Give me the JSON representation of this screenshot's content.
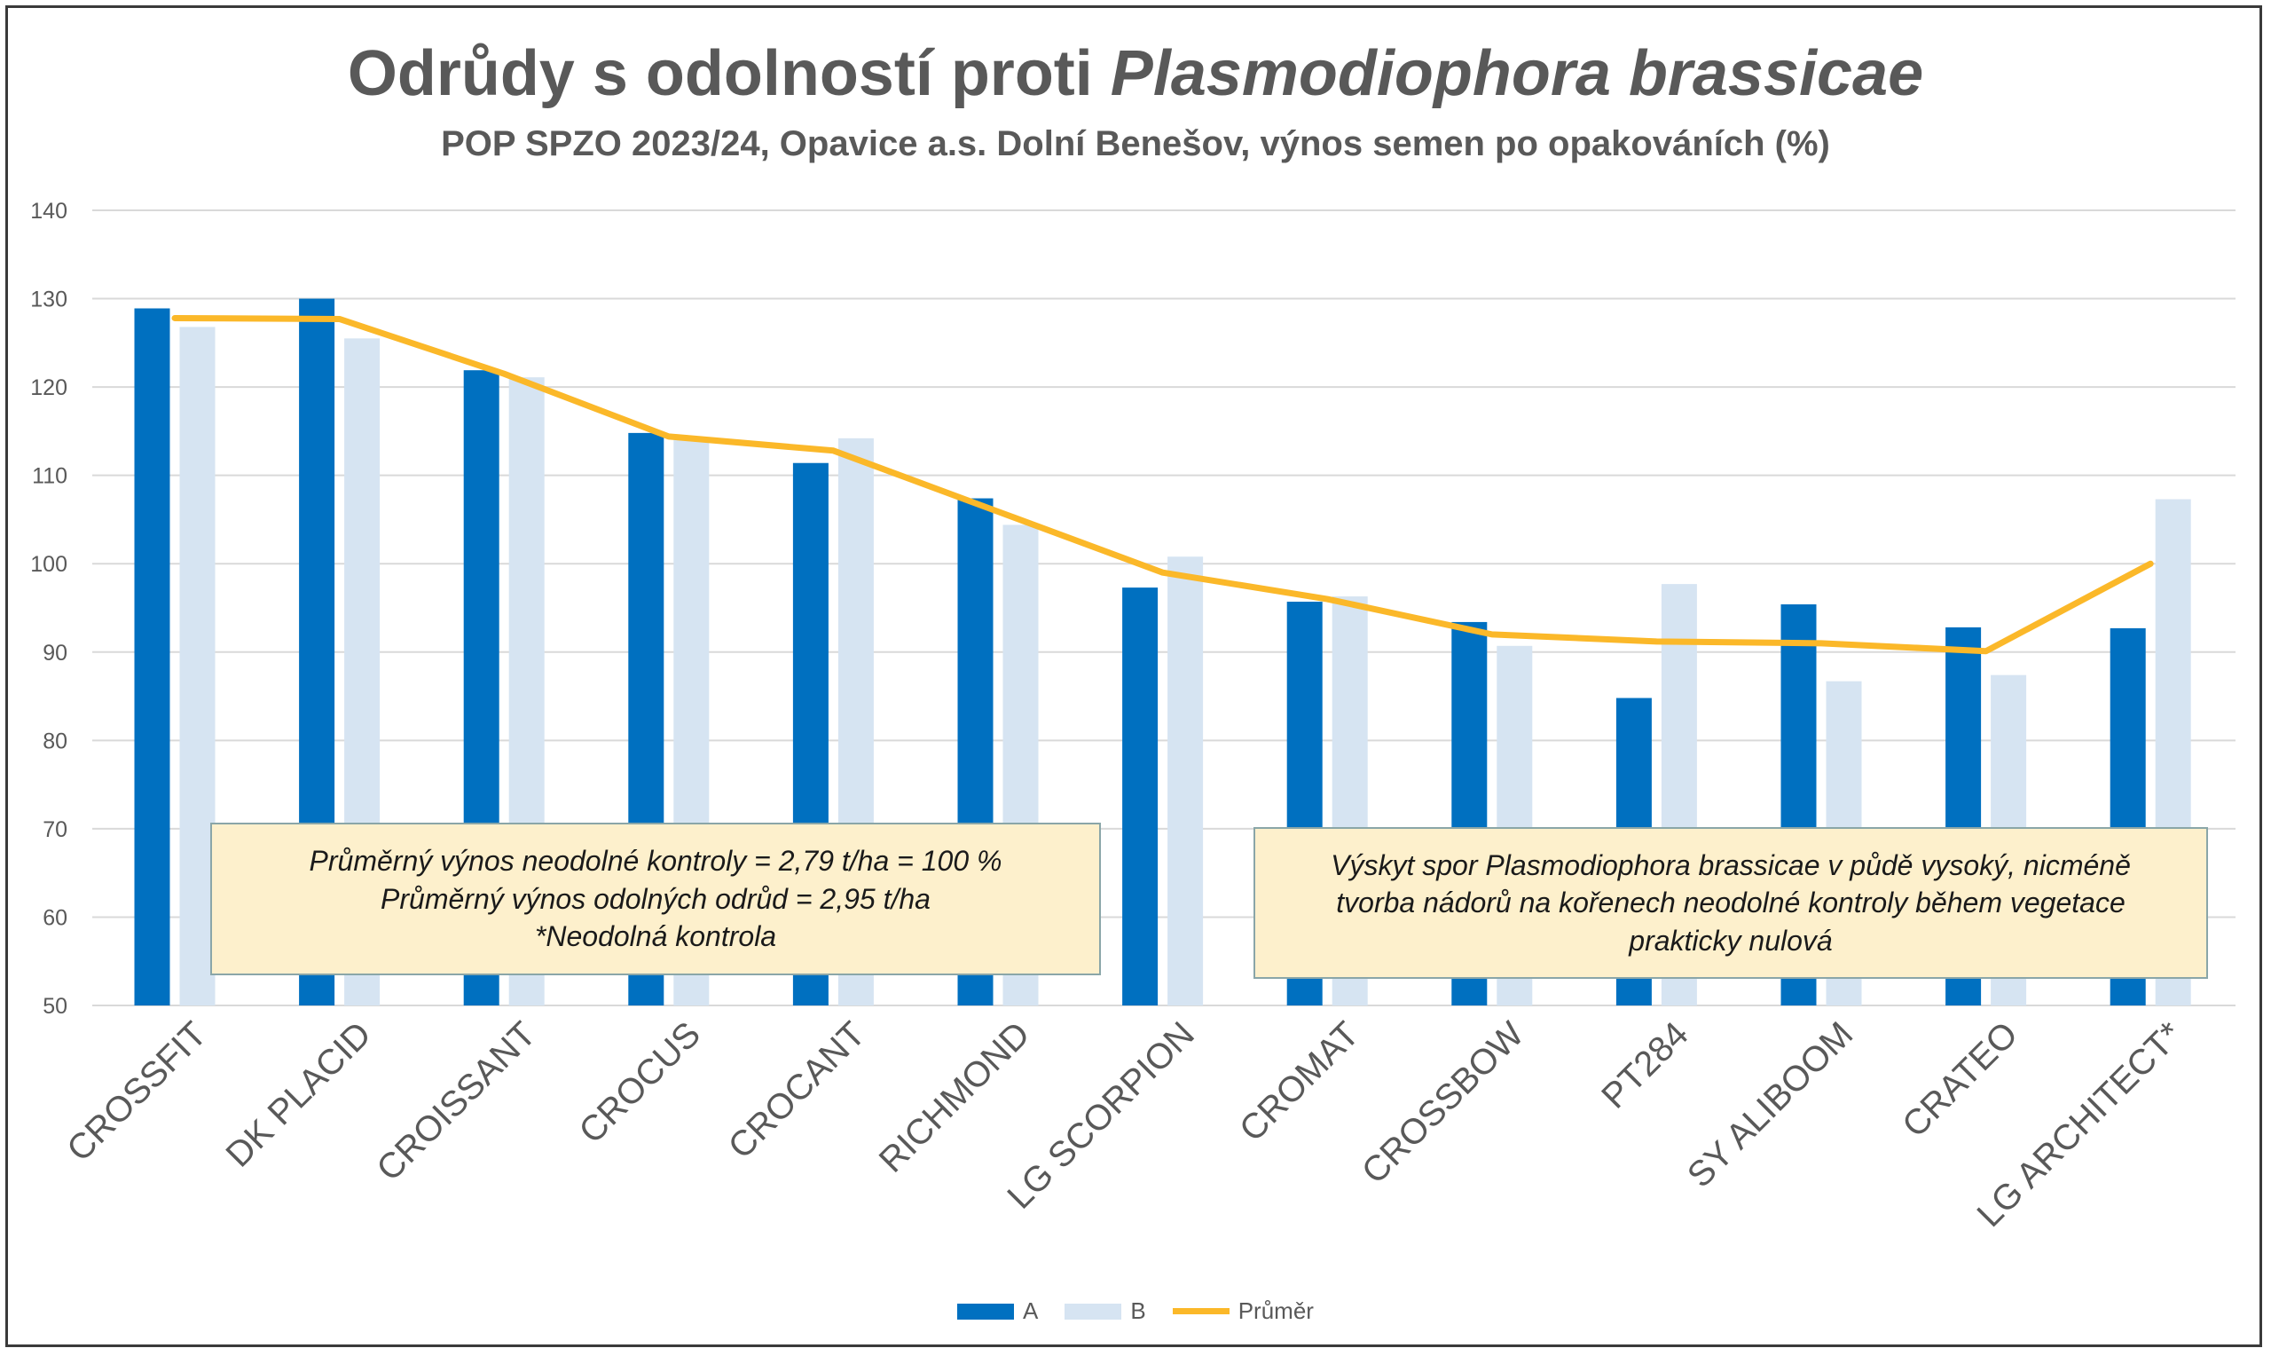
{
  "title_main": "Odrůdy s odolností proti ",
  "title_italic": "Plasmodiophora brassicae",
  "subtitle": "POP SPZO 2023/24, Opavice a.s. Dolní Benešov, výnos semen po opakováních (%)",
  "notes": {
    "left": [
      "Průměrný výnos neodolné kontroly = 2,79 t/ha = 100 %",
      "Průměrný výnos odolných odrůd = 2,95 t/ha",
      "*Neodolná kontrola"
    ],
    "right": [
      "Výskyt spor Plasmodiophora brassicae v půdě vysoký, nicméně",
      "tvorba nádorů na kořenech neodolné kontroly během vegetace",
      "prakticky nulová"
    ]
  },
  "colors": {
    "A": "#0070c0",
    "B": "#d6e4f2",
    "mean": "#fbb829",
    "grid": "#d9d9d9",
    "text": "#595959"
  },
  "chart_data": {
    "type": "bar",
    "title": "Odrůdy s odolností proti Plasmodiophora brassicae",
    "subtitle": "POP SPZO 2023/24, Opavice a.s. Dolní Benešov, výnos semen po opakováních (%)",
    "categories": [
      "CROSSFIT",
      "DK PLACID",
      "CROISSANT",
      "CROCUS",
      "CROCANT",
      "RICHMOND",
      "LG SCORPION",
      "CROMAT",
      "CROSSBOW",
      "PT284",
      "SY ALIBOOM",
      "CRATEO",
      "LG ARCHITECT*"
    ],
    "series": [
      {
        "name": "A",
        "type": "bar",
        "values": [
          128.9,
          130.0,
          121.9,
          114.8,
          111.4,
          107.4,
          97.3,
          95.7,
          93.4,
          84.8,
          95.4,
          92.8,
          92.7
        ]
      },
      {
        "name": "B",
        "type": "bar",
        "values": [
          126.8,
          125.5,
          121.1,
          114.1,
          114.2,
          104.4,
          100.8,
          96.3,
          90.7,
          97.7,
          86.7,
          87.4,
          107.3
        ]
      },
      {
        "name": "Průměr",
        "type": "line",
        "values": [
          127.8,
          127.7,
          121.5,
          114.4,
          112.8,
          105.9,
          99.0,
          96.0,
          92.0,
          91.2,
          91.0,
          90.1,
          100.0
        ]
      }
    ],
    "ylim": [
      50,
      140
    ],
    "yticks": [
      50,
      60,
      70,
      80,
      90,
      100,
      110,
      120,
      130,
      140
    ],
    "grid": true,
    "legend": "bottom"
  }
}
